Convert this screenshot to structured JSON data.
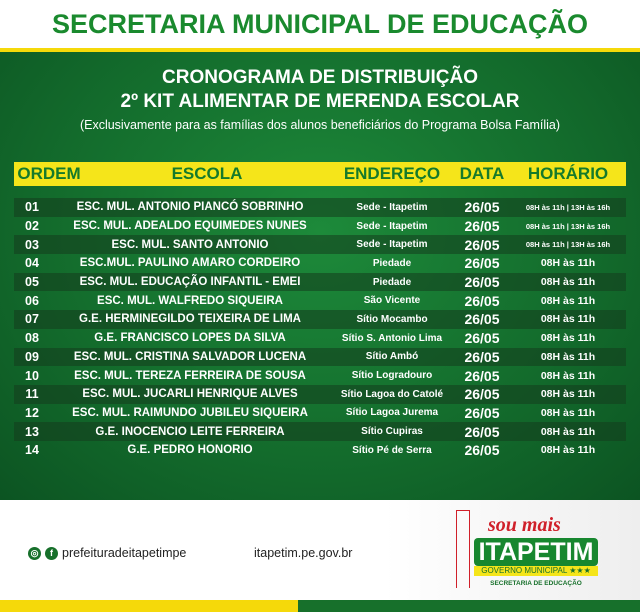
{
  "header": {
    "title": "SECRETARIA MUNICIPAL DE EDUCAÇÃO"
  },
  "main": {
    "title_line1": "CRONOGRAMA DE DISTRIBUIÇÃO",
    "title_line2": "2º KIT ALIMENTAR DE MERENDA ESCOLAR",
    "subtitle": "(Exclusivamente para as famílias dos alunos beneficiários do Programa Bolsa Família)",
    "columns": [
      "ORDEM",
      "ESCOLA",
      "ENDEREÇO",
      "DATA",
      "HORÁRIO"
    ],
    "rows": [
      {
        "ordem": "01",
        "escola": "ESC. MUL.  ANTONIO PIANCÓ SOBRINHO",
        "endereco": "Sede - Itapetim",
        "data": "26/05",
        "horario": "08H às 11h | 13H às 16h"
      },
      {
        "ordem": "02",
        "escola": "ESC. MUL. ADEALDO EQUIMEDES NUNES",
        "endereco": "Sede - Itapetim",
        "data": "26/05",
        "horario": "08H às 11h | 13H às 16h"
      },
      {
        "ordem": "03",
        "escola": "ESC. MUL. SANTO ANTONIO",
        "endereco": "Sede - Itapetim",
        "data": "26/05",
        "horario": "08H às 11h | 13H às 16h"
      },
      {
        "ordem": "04",
        "escola": "ESC.MUL. PAULINO AMARO CORDEIRO",
        "endereco": "Piedade",
        "data": "26/05",
        "horario": "08H às 11h"
      },
      {
        "ordem": "05",
        "escola": "ESC. MUL. EDUCAÇÃO INFANTIL - EMEI",
        "endereco": "Piedade",
        "data": "26/05",
        "horario": "08H às 11h"
      },
      {
        "ordem": "06",
        "escola": "ESC. MUL. WALFREDO SIQUEIRA",
        "endereco": "São Vicente",
        "data": "26/05",
        "horario": "08H às 11h"
      },
      {
        "ordem": "07",
        "escola": "G.E. HERMINEGILDO TEIXEIRA DE LIMA",
        "endereco": "Sítio Mocambo",
        "data": "26/05",
        "horario": "08H às 11h"
      },
      {
        "ordem": "08",
        "escola": "G.E. FRANCISCO LOPES DA SILVA",
        "endereco": "Sítio S. Antonio Lima",
        "data": "26/05",
        "horario": "08H às 11h"
      },
      {
        "ordem": "09",
        "escola": "ESC. MUL. CRISTINA SALVADOR LUCENA",
        "endereco": "Sítio Ambó",
        "data": "26/05",
        "horario": "08H às 11h"
      },
      {
        "ordem": "10",
        "escola": "ESC. MUL. TEREZA FERREIRA DE SOUSA",
        "endereco": "Sítio Logradouro",
        "data": "26/05",
        "horario": "08H às 11h"
      },
      {
        "ordem": "11",
        "escola": "ESC. MUL. JUCARLI HENRIQUE ALVES",
        "endereco": "Sítio Lagoa do Catolé",
        "data": "26/05",
        "horario": "08H às 11h"
      },
      {
        "ordem": "12",
        "escola": "ESC. MUL. RAIMUNDO JUBILEU SIQUEIRA",
        "endereco": "Sítio Lagoa Jurema",
        "data": "26/05",
        "horario": "08H às 11h"
      },
      {
        "ordem": "13",
        "escola": "G.E. INOCENCIO LEITE FERREIRA",
        "endereco": "Sítio Cupiras",
        "data": "26/05",
        "horario": "08H às 11h"
      },
      {
        "ordem": "14",
        "escola": "G.E. PEDRO HONORIO",
        "endereco": "Sítio Pé de Serra",
        "data": "26/05",
        "horario": "08H às 11h"
      }
    ]
  },
  "footer": {
    "social_handle": "prefeituradeitapetimpe",
    "website": "itapetim.pe.gov.br",
    "logo": {
      "tagline": "sou mais",
      "name": "ITAPETIM",
      "gov": "GOVERNO MUNICIPAL ★★★",
      "dept": "SECRETARIA DE EDUCAÇÃO"
    },
    "icons": [
      "instagram-icon",
      "facebook-icon"
    ]
  },
  "colors": {
    "green": "#17872f",
    "yellow": "#f5e51a",
    "red": "#d0202a"
  }
}
